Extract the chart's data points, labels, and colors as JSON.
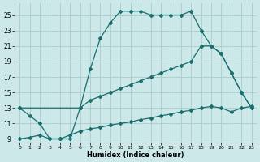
{
  "xlabel": "Humidex (Indice chaleur)",
  "background_color": "#cce8e8",
  "grid_color": "#aacccc",
  "line_color": "#1a6e6e",
  "xlim": [
    -0.5,
    23.5
  ],
  "ylim": [
    8.5,
    26.5
  ],
  "yticks": [
    9,
    11,
    13,
    15,
    17,
    19,
    21,
    23,
    25
  ],
  "xticks": [
    0,
    1,
    2,
    3,
    4,
    5,
    6,
    7,
    8,
    9,
    10,
    11,
    12,
    13,
    14,
    15,
    16,
    17,
    18,
    19,
    20,
    21,
    22,
    23
  ],
  "series1_x": [
    0,
    1,
    2,
    3,
    4,
    5,
    6,
    7,
    8,
    9,
    10,
    11,
    12,
    13,
    14,
    15,
    16,
    17,
    18,
    19,
    20,
    21,
    22,
    23
  ],
  "series1_y": [
    13,
    12,
    11,
    9,
    9,
    9,
    13,
    18,
    22,
    24,
    25.5,
    25.5,
    25.5,
    25,
    25,
    25,
    25,
    25.5,
    23,
    21,
    20,
    17.5,
    15,
    13
  ],
  "series2_x": [
    0,
    6,
    7,
    8,
    9,
    10,
    11,
    12,
    13,
    14,
    15,
    16,
    17,
    18,
    19,
    20,
    21,
    22,
    23
  ],
  "series2_y": [
    13,
    13,
    14,
    14.5,
    15,
    15.5,
    16,
    16.5,
    17,
    17.5,
    18,
    18.5,
    19,
    21,
    21,
    20,
    17.5,
    15,
    13
  ],
  "series3_x": [
    0,
    1,
    2,
    3,
    4,
    5,
    6,
    7,
    8,
    9,
    10,
    11,
    12,
    13,
    14,
    15,
    16,
    17,
    18,
    19,
    20,
    21,
    22,
    23
  ],
  "series3_y": [
    9,
    9.2,
    9.5,
    9,
    9,
    9.5,
    10,
    10.3,
    10.5,
    10.8,
    11,
    11.2,
    11.5,
    11.7,
    12,
    12.2,
    12.5,
    12.7,
    13,
    13.2,
    13,
    12.5,
    13,
    13.2
  ]
}
